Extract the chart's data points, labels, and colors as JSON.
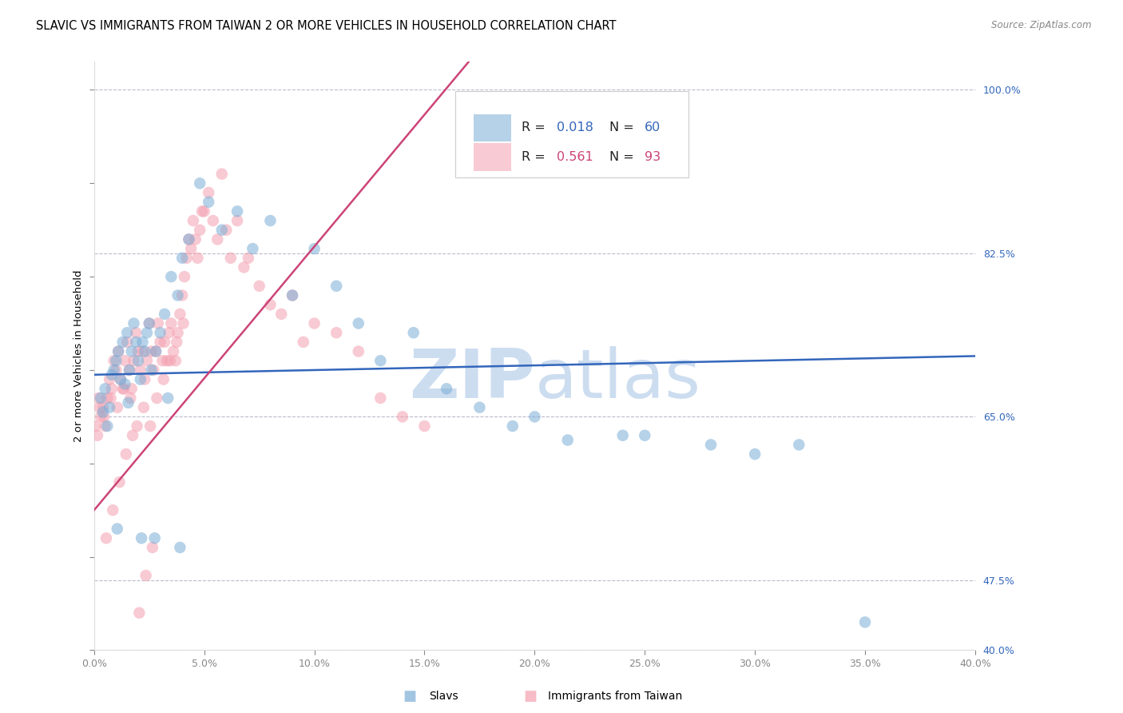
{
  "title": "SLAVIC VS IMMIGRANTS FROM TAIWAN 2 OR MORE VEHICLES IN HOUSEHOLD CORRELATION CHART",
  "source": "Source: ZipAtlas.com",
  "ylabel": "2 or more Vehicles in Household",
  "x_min": 0.0,
  "x_max": 40.0,
  "y_min": 40.0,
  "y_max": 103.0,
  "y_ticks": [
    40.0,
    47.5,
    65.0,
    82.5,
    100.0
  ],
  "x_ticks": [
    0.0,
    5.0,
    10.0,
    15.0,
    20.0,
    25.0,
    30.0,
    35.0,
    40.0
  ],
  "legend_R_blue": "0.018",
  "legend_N_blue": "60",
  "legend_R_pink": "0.561",
  "legend_N_pink": "93",
  "legend_label_blue": "Slavs",
  "legend_label_pink": "Immigrants from Taiwan",
  "blue_color": "#7BADD6",
  "pink_color": "#F4A0B0",
  "trendline_blue_color": "#3366BB",
  "trendline_pink_color": "#CC4477",
  "watermark_color": "#C5D8EE",
  "background_color": "#FFFFFF",
  "grid_color": "#BBBBCC",
  "blue_trend_x": [
    0.0,
    40.0
  ],
  "blue_trend_y": [
    69.5,
    71.5
  ],
  "pink_trend_x": [
    0.0,
    17.0
  ],
  "pink_trend_y": [
    55.0,
    103.0
  ],
  "blue_x": [
    0.3,
    0.4,
    0.5,
    0.6,
    0.7,
    0.8,
    0.9,
    1.0,
    1.1,
    1.2,
    1.3,
    1.4,
    1.5,
    1.6,
    1.7,
    1.8,
    1.9,
    2.0,
    2.1,
    2.2,
    2.3,
    2.4,
    2.5,
    2.6,
    2.8,
    3.0,
    3.2,
    3.5,
    3.8,
    4.0,
    4.3,
    4.8,
    5.2,
    5.8,
    6.5,
    7.2,
    8.0,
    9.0,
    10.0,
    11.0,
    12.0,
    13.0,
    14.5,
    16.0,
    17.5,
    19.0,
    20.0,
    21.5,
    24.0,
    25.0,
    28.0,
    30.0,
    32.0,
    35.0,
    1.05,
    1.55,
    2.15,
    2.75,
    3.35,
    3.9
  ],
  "blue_y": [
    67.0,
    65.5,
    68.0,
    64.0,
    66.0,
    69.5,
    70.0,
    71.0,
    72.0,
    69.0,
    73.0,
    68.5,
    74.0,
    70.0,
    72.0,
    75.0,
    73.0,
    71.0,
    69.0,
    73.0,
    72.0,
    74.0,
    75.0,
    70.0,
    72.0,
    74.0,
    76.0,
    80.0,
    78.0,
    82.0,
    84.0,
    90.0,
    88.0,
    85.0,
    87.0,
    83.0,
    86.0,
    78.0,
    83.0,
    79.0,
    75.0,
    71.0,
    74.0,
    68.0,
    66.0,
    64.0,
    65.0,
    62.5,
    63.0,
    63.0,
    62.0,
    61.0,
    62.0,
    43.0,
    53.0,
    66.5,
    52.0,
    52.0,
    67.0,
    51.0
  ],
  "pink_x": [
    0.2,
    0.3,
    0.4,
    0.5,
    0.6,
    0.7,
    0.8,
    0.9,
    1.0,
    1.1,
    1.2,
    1.3,
    1.4,
    1.5,
    1.6,
    1.7,
    1.8,
    1.9,
    2.0,
    2.1,
    2.2,
    2.3,
    2.4,
    2.5,
    2.6,
    2.7,
    2.8,
    2.9,
    3.0,
    3.1,
    3.2,
    3.3,
    3.4,
    3.5,
    3.6,
    3.7,
    3.8,
    3.9,
    4.0,
    4.1,
    4.2,
    4.3,
    4.4,
    4.5,
    4.6,
    4.7,
    4.8,
    4.9,
    5.0,
    5.2,
    5.4,
    5.6,
    5.8,
    6.0,
    6.2,
    6.5,
    6.8,
    7.0,
    7.5,
    8.0,
    8.5,
    9.0,
    9.5,
    10.0,
    11.0,
    12.0,
    13.0,
    14.0,
    15.0,
    0.15,
    0.45,
    0.75,
    1.05,
    1.35,
    1.65,
    1.95,
    2.25,
    2.55,
    2.85,
    3.15,
    3.45,
    3.75,
    4.05,
    0.05,
    0.25,
    0.55,
    0.85,
    1.15,
    1.45,
    1.75,
    2.05,
    2.35,
    2.65
  ],
  "pink_y": [
    67.0,
    65.0,
    66.0,
    64.0,
    67.0,
    69.0,
    68.0,
    71.0,
    70.0,
    72.0,
    69.0,
    68.0,
    71.0,
    73.0,
    70.0,
    68.0,
    71.0,
    74.0,
    72.0,
    70.0,
    72.0,
    69.0,
    71.0,
    75.0,
    72.0,
    70.0,
    72.0,
    75.0,
    73.0,
    71.0,
    73.0,
    71.0,
    74.0,
    75.0,
    72.0,
    71.0,
    74.0,
    76.0,
    78.0,
    80.0,
    82.0,
    84.0,
    83.0,
    86.0,
    84.0,
    82.0,
    85.0,
    87.0,
    87.0,
    89.0,
    86.0,
    84.0,
    91.0,
    85.0,
    82.0,
    86.0,
    81.0,
    82.0,
    79.0,
    77.0,
    76.0,
    78.0,
    73.0,
    75.0,
    74.0,
    72.0,
    67.0,
    65.0,
    64.0,
    63.0,
    65.0,
    67.0,
    66.0,
    68.0,
    67.0,
    64.0,
    66.0,
    64.0,
    67.0,
    69.0,
    71.0,
    73.0,
    75.0,
    64.0,
    66.0,
    52.0,
    55.0,
    58.0,
    61.0,
    63.0,
    44.0,
    48.0,
    51.0
  ]
}
